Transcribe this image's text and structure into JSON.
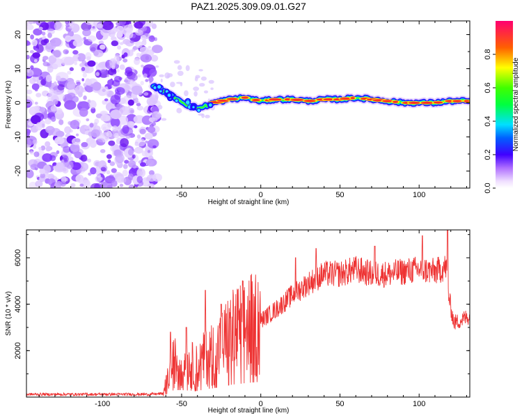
{
  "title": "PAZ1.2025.309.09.01.G27",
  "chart_data": [
    {
      "type": "heatmap",
      "name": "spectrogram",
      "xlabel": "Height of straight line (km)",
      "ylabel": "Frequency (Hz)",
      "xlim": [
        -148,
        132
      ],
      "ylim": [
        -25,
        24
      ],
      "xticks": [
        -100,
        -50,
        0,
        50,
        100
      ],
      "yticks": [
        -20,
        -10,
        0,
        10,
        20
      ],
      "xtick_labels": [
        "-100",
        "-50",
        "0",
        "50",
        "100"
      ],
      "ytick_labels": [
        "-20",
        "-10",
        "0",
        "10",
        "20"
      ],
      "noise_region_x": [
        -148,
        -68
      ],
      "signal_ridge": [
        {
          "x": -68,
          "y": 5
        },
        {
          "x": -60,
          "y": 3
        },
        {
          "x": -52,
          "y": 1
        },
        {
          "x": -45,
          "y": -1
        },
        {
          "x": -38,
          "y": -1.5
        },
        {
          "x": -30,
          "y": 0
        },
        {
          "x": -20,
          "y": 1
        },
        {
          "x": -10,
          "y": 1.5
        },
        {
          "x": 0,
          "y": 0.5
        },
        {
          "x": 10,
          "y": 1
        },
        {
          "x": 20,
          "y": 1
        },
        {
          "x": 30,
          "y": 0.5
        },
        {
          "x": 40,
          "y": 1
        },
        {
          "x": 50,
          "y": 1
        },
        {
          "x": 60,
          "y": 1.5
        },
        {
          "x": 70,
          "y": 1
        },
        {
          "x": 80,
          "y": 0.5
        },
        {
          "x": 90,
          "y": 0
        },
        {
          "x": 100,
          "y": 0
        },
        {
          "x": 110,
          "y": 0
        },
        {
          "x": 120,
          "y": 0.5
        },
        {
          "x": 132,
          "y": 0.5
        }
      ]
    },
    {
      "type": "colorbar",
      "name": "amplitude-scale",
      "label": "Normalized spectral amplitude",
      "range": [
        0,
        1
      ],
      "ticks": [
        0,
        0.2,
        0.4,
        0.6,
        0.8
      ],
      "tick_labels": [
        "0.0",
        "0.2",
        "0.4",
        "0.6",
        "0.8"
      ]
    },
    {
      "type": "line",
      "name": "snr",
      "xlabel": "Height of straight line (km)",
      "ylabel": "SNR (10 * v/v)",
      "xlim": [
        -148,
        132
      ],
      "ylim": [
        0,
        7200
      ],
      "xticks": [
        -100,
        -50,
        0,
        50,
        100
      ],
      "yticks": [
        2000,
        4000,
        6000
      ],
      "xtick_labels": [
        "-100",
        "-50",
        "0",
        "50",
        "100"
      ],
      "ytick_labels": [
        "2000",
        "4000",
        "6000"
      ],
      "color": "#ee3333",
      "envelope": [
        {
          "x": -148,
          "y": 120
        },
        {
          "x": -70,
          "y": 120
        },
        {
          "x": -62,
          "y": 150
        },
        {
          "x": -58,
          "y": 900
        },
        {
          "x": -55,
          "y": 1500
        },
        {
          "x": -50,
          "y": 1500
        },
        {
          "x": -45,
          "y": 1400
        },
        {
          "x": -40,
          "y": 1300
        },
        {
          "x": -35,
          "y": 1700
        },
        {
          "x": -30,
          "y": 1900
        },
        {
          "x": -25,
          "y": 2200
        },
        {
          "x": -20,
          "y": 2600
        },
        {
          "x": -10,
          "y": 3000
        },
        {
          "x": 0,
          "y": 3300
        },
        {
          "x": 10,
          "y": 3800
        },
        {
          "x": 20,
          "y": 4400
        },
        {
          "x": 30,
          "y": 4900
        },
        {
          "x": 40,
          "y": 5300
        },
        {
          "x": 50,
          "y": 5300
        },
        {
          "x": 60,
          "y": 5500
        },
        {
          "x": 70,
          "y": 5300
        },
        {
          "x": 80,
          "y": 5300
        },
        {
          "x": 90,
          "y": 5400
        },
        {
          "x": 100,
          "y": 5500
        },
        {
          "x": 110,
          "y": 5400
        },
        {
          "x": 117,
          "y": 5600
        },
        {
          "x": 119,
          "y": 4200
        },
        {
          "x": 122,
          "y": 3200
        },
        {
          "x": 126,
          "y": 3300
        },
        {
          "x": 132,
          "y": 3500
        }
      ],
      "peaks": [
        {
          "x": -57,
          "y": 2800
        },
        {
          "x": -47,
          "y": 3000
        },
        {
          "x": -35,
          "y": 4600
        },
        {
          "x": -25,
          "y": 4000
        },
        {
          "x": 22,
          "y": 6000
        },
        {
          "x": 35,
          "y": 6400
        },
        {
          "x": 72,
          "y": 6500
        },
        {
          "x": 102,
          "y": 6950
        },
        {
          "x": 118,
          "y": 7200
        }
      ]
    }
  ]
}
